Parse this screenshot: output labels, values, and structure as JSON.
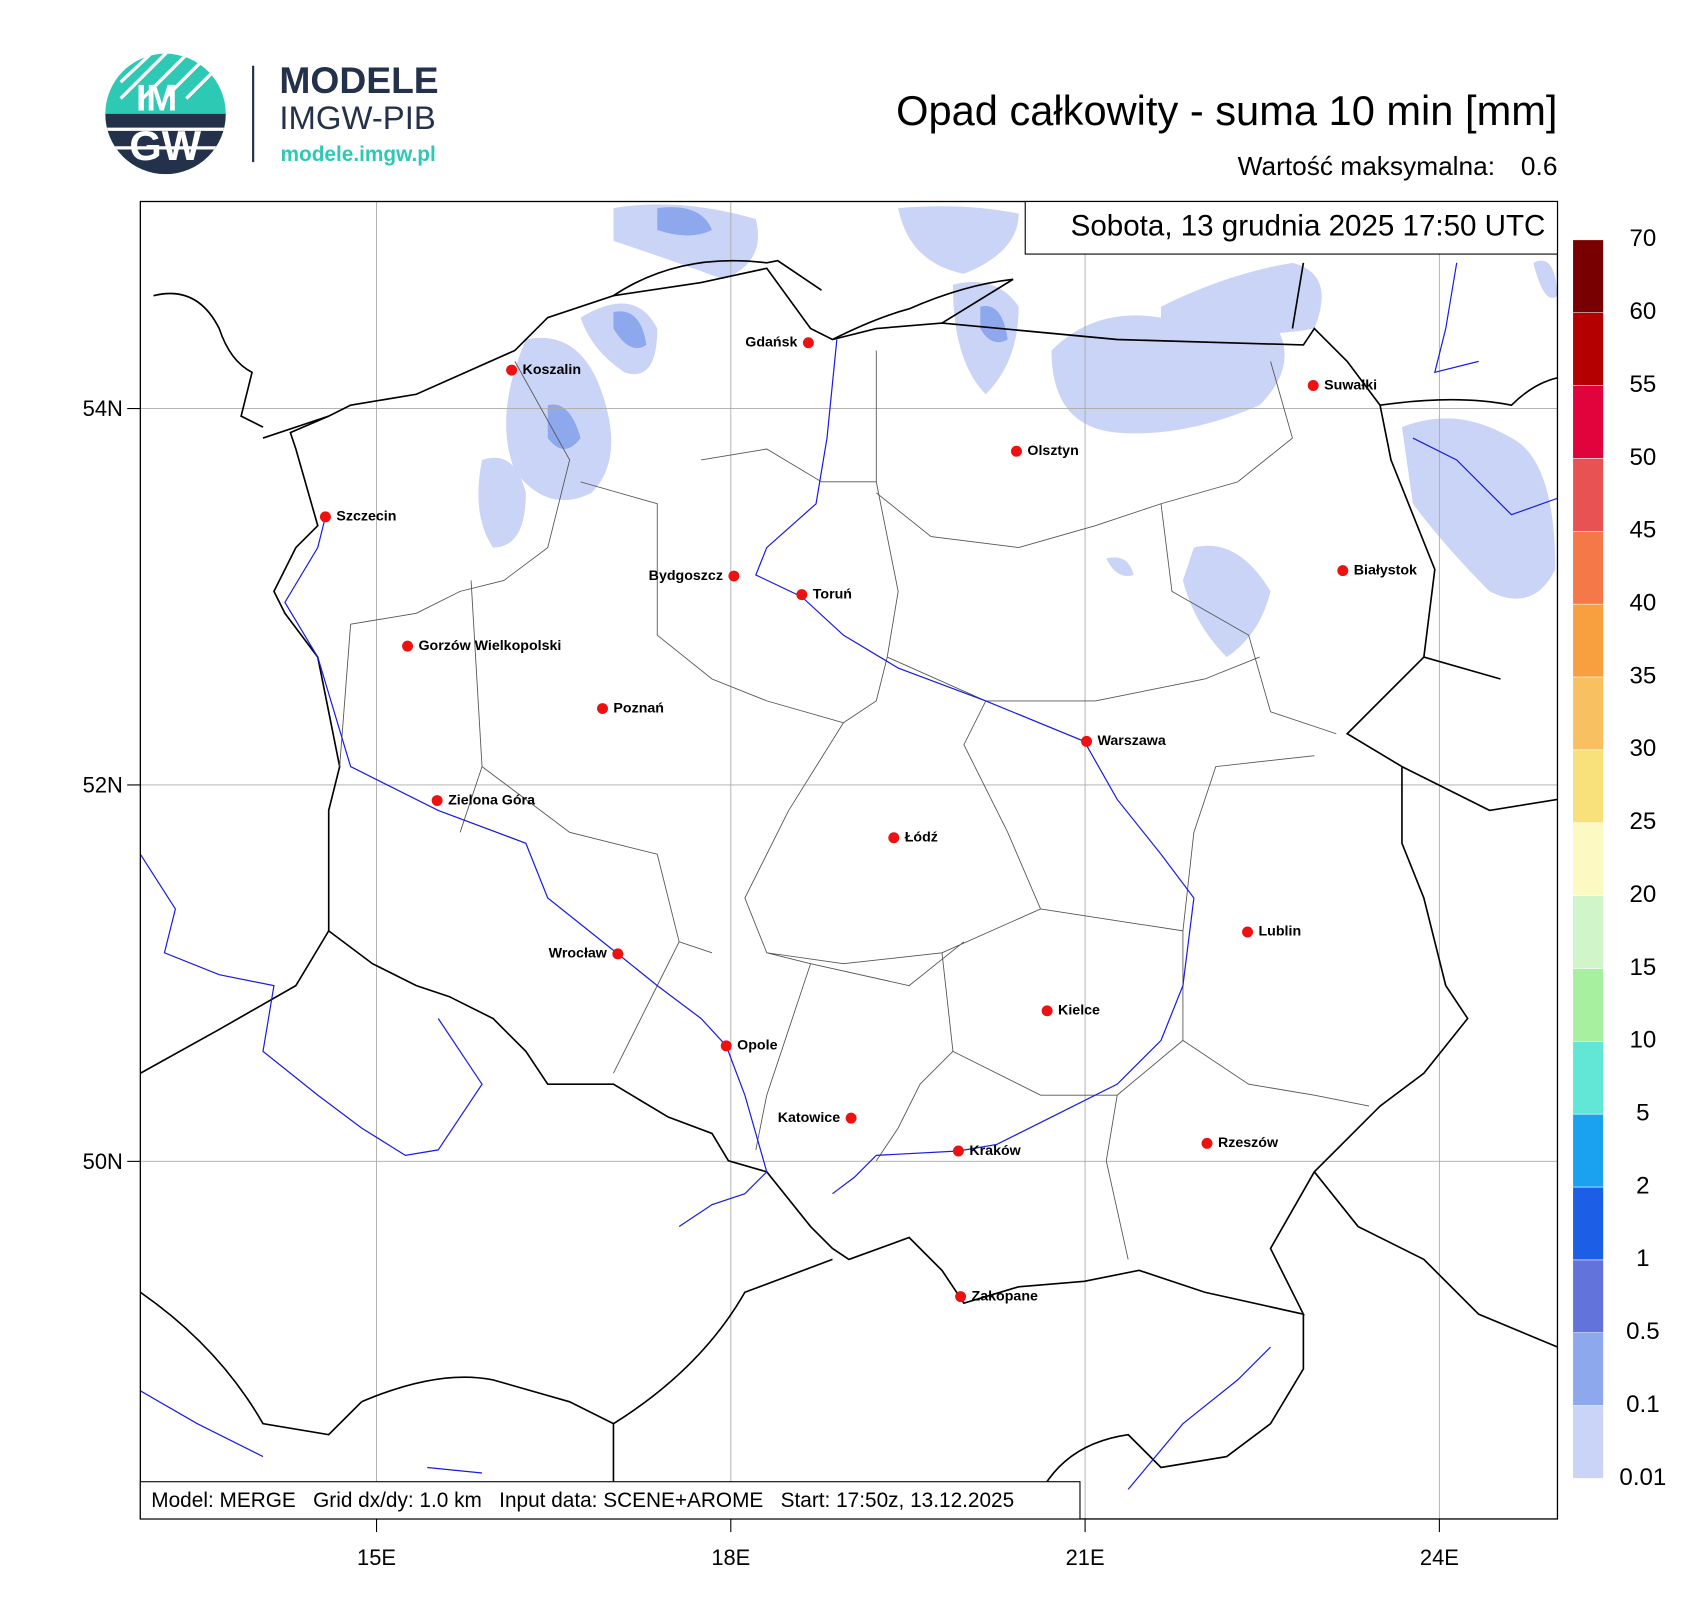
{
  "header": {
    "logo_top": "IM",
    "logo_bottom": "GW",
    "brand": "MODELE",
    "brand_sub": "IMGW-PIB",
    "url": "modele.imgw.pl",
    "title": "Opad całkowity - suma 10 min [mm]",
    "max_label": "Wartość maksymalna:",
    "max_value": 0.6
  },
  "map": {
    "date": "Sobota, 13 grudnia 2025 17:50 UTC",
    "lon_lim": [
      13,
      25
    ],
    "lat_lim": [
      48.1,
      55.1
    ],
    "lon_ticks": [
      {
        "value": 15,
        "label": "15E"
      },
      {
        "value": 18,
        "label": "18E"
      },
      {
        "value": 21,
        "label": "21E"
      },
      {
        "value": 24,
        "label": "24E"
      }
    ],
    "lat_ticks": [
      {
        "value": 50,
        "label": "50N"
      },
      {
        "value": 52,
        "label": "52N"
      },
      {
        "value": 54,
        "label": "54N"
      }
    ],
    "grid": true,
    "cities": [
      "Gdańsk",
      "Koszalin",
      "Szczecin",
      "Olsztyn",
      "Suwałki",
      "Białystok",
      "Bydgoszcz",
      "Toruń",
      "Gorzów Wielkopolski",
      "Poznań",
      "Warszawa",
      "Zielona Góra",
      "Łódź",
      "Lublin",
      "Wrocław",
      "Kielce",
      "Opole",
      "Katowice",
      "Rzeszów",
      "Kraków",
      "Zakopane"
    ],
    "footer": "Model: MERGE   Grid dx/dy: 1.0 km   Input data: SCENE+AROME   Start: 17:50z, 13.12.2025"
  },
  "colorbar": {
    "levels": [
      0.01,
      0.1,
      0.5,
      1,
      2,
      5,
      10,
      15,
      20,
      25,
      30,
      35,
      40,
      45,
      50,
      55,
      60,
      70
    ],
    "colors": [
      "#cad4f6",
      "#8ea8ee",
      "#6274dc",
      "#1c5fe6",
      "#1aa2ef",
      "#62e6d6",
      "#a6f0a0",
      "#cff5c9",
      "#fcfac2",
      "#f8e07a",
      "#f8c060",
      "#f8a040",
      "#f47848",
      "#e85252",
      "#e0033c",
      "#b50000",
      "#780000"
    ]
  }
}
